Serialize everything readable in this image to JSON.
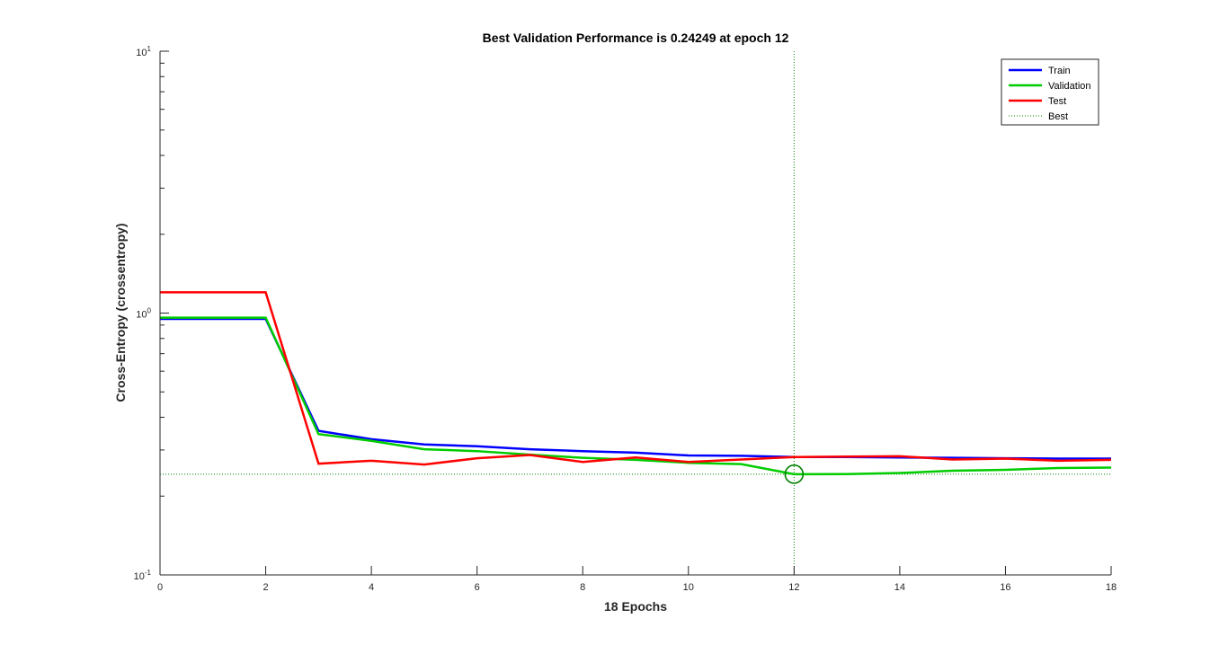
{
  "chart_data": {
    "type": "line",
    "title": "Best Validation Performance is 0.24249 at epoch 12",
    "xlabel": "18 Epochs",
    "ylabel": "Cross-Entropy  (crossentropy)",
    "xlim": [
      0,
      18
    ],
    "ylim": [
      0.1,
      10
    ],
    "yscale": "log",
    "x_ticks": [
      "0",
      "2",
      "4",
      "6",
      "8",
      "10",
      "12",
      "14",
      "16",
      "18"
    ],
    "y_ticks": [
      {
        "base": "10",
        "exp": "-1",
        "value": 0.1
      },
      {
        "base": "10",
        "exp": "0",
        "value": 1
      },
      {
        "base": "10",
        "exp": "1",
        "value": 10
      }
    ],
    "x": [
      0,
      1,
      2,
      3,
      4,
      5,
      6,
      7,
      8,
      9,
      10,
      11,
      12,
      13,
      14,
      15,
      16,
      17,
      18
    ],
    "series": [
      {
        "name": "Train",
        "color": "#0000ff",
        "values": [
          0.95,
          0.95,
          0.95,
          0.355,
          0.33,
          0.315,
          0.31,
          0.302,
          0.297,
          0.293,
          0.286,
          0.285,
          0.282,
          0.282,
          0.281,
          0.28,
          0.279,
          0.278,
          0.278
        ]
      },
      {
        "name": "Validation",
        "color": "#00cc00",
        "values": [
          0.96,
          0.96,
          0.96,
          0.345,
          0.325,
          0.302,
          0.297,
          0.288,
          0.28,
          0.275,
          0.268,
          0.265,
          0.24249,
          0.2426,
          0.245,
          0.25,
          0.252,
          0.256,
          0.257
        ]
      },
      {
        "name": "Test",
        "color": "#ff0000",
        "values": [
          1.2,
          1.2,
          1.2,
          0.266,
          0.273,
          0.264,
          0.279,
          0.287,
          0.27,
          0.281,
          0.27,
          0.276,
          0.282,
          0.283,
          0.284,
          0.276,
          0.278,
          0.273,
          0.275
        ]
      }
    ],
    "best": {
      "name": "Best",
      "epoch": 12,
      "value": 0.24249,
      "color": "#008000"
    },
    "legend_position": "top-right",
    "grid": false
  }
}
